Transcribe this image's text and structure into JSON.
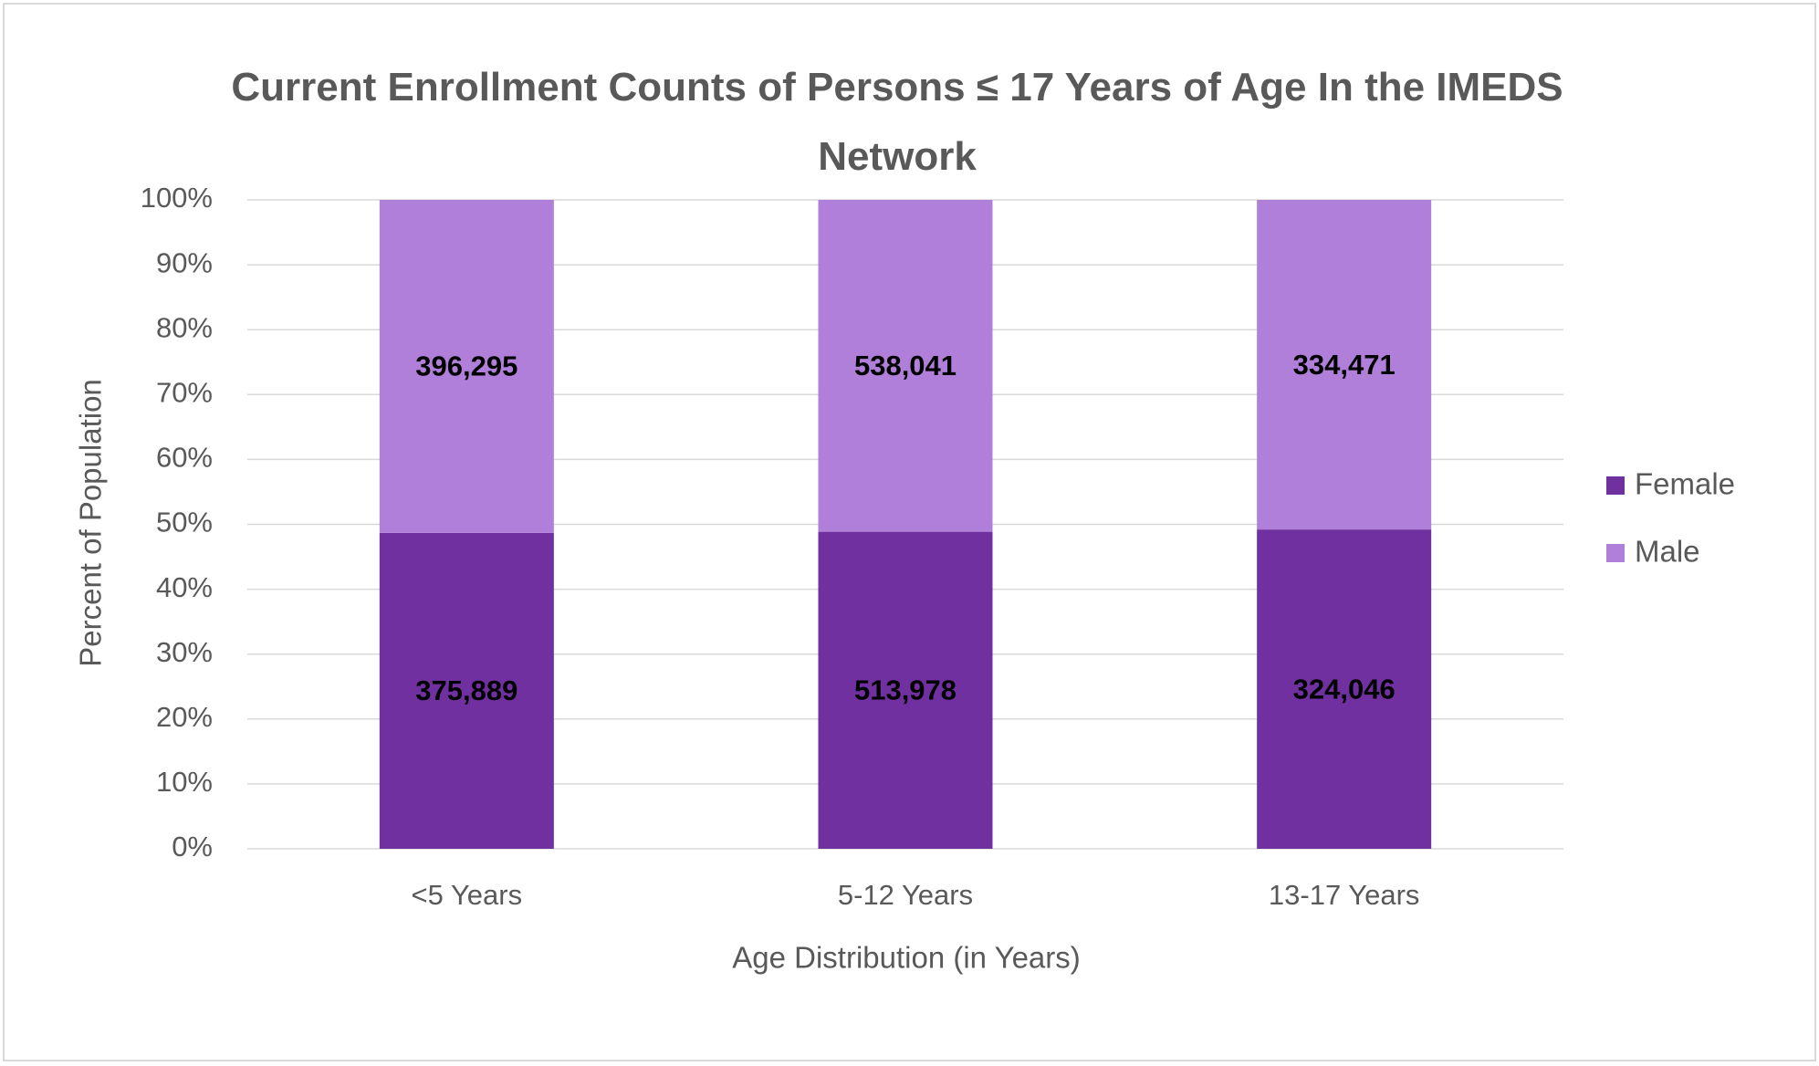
{
  "chart_data": {
    "type": "bar",
    "stacking": "percent",
    "title": "Current Enrollment Counts of Persons ≤ 17 Years of Age In the IMEDS Network",
    "x_label": "Age Distribution (in Years)",
    "y_label": "Percent of Population",
    "categories": [
      "<5 Years",
      "5-12 Years",
      "13-17 Years"
    ],
    "series": [
      {
        "name": "Female",
        "color": "#7030a0",
        "values": [
          375889,
          513978,
          324046
        ],
        "value_labels": [
          "375,889",
          "513,978",
          "324,046"
        ]
      },
      {
        "name": "Male",
        "color": "#b07fd9",
        "values": [
          396295,
          538041,
          334471
        ],
        "value_labels": [
          "396,295",
          "538,041",
          "334,471"
        ]
      }
    ],
    "ylim": [
      0,
      100
    ],
    "yticks": [
      {
        "value": 0,
        "label": "0%"
      },
      {
        "value": 10,
        "label": "10%"
      },
      {
        "value": 20,
        "label": "20%"
      },
      {
        "value": 30,
        "label": "30%"
      },
      {
        "value": 40,
        "label": "40%"
      },
      {
        "value": 50,
        "label": "50%"
      },
      {
        "value": 60,
        "label": "60%"
      },
      {
        "value": 70,
        "label": "70%"
      },
      {
        "value": 80,
        "label": "80%"
      },
      {
        "value": 90,
        "label": "90%"
      },
      {
        "value": 100,
        "label": "100%"
      }
    ],
    "grid": true,
    "legend": "right"
  }
}
